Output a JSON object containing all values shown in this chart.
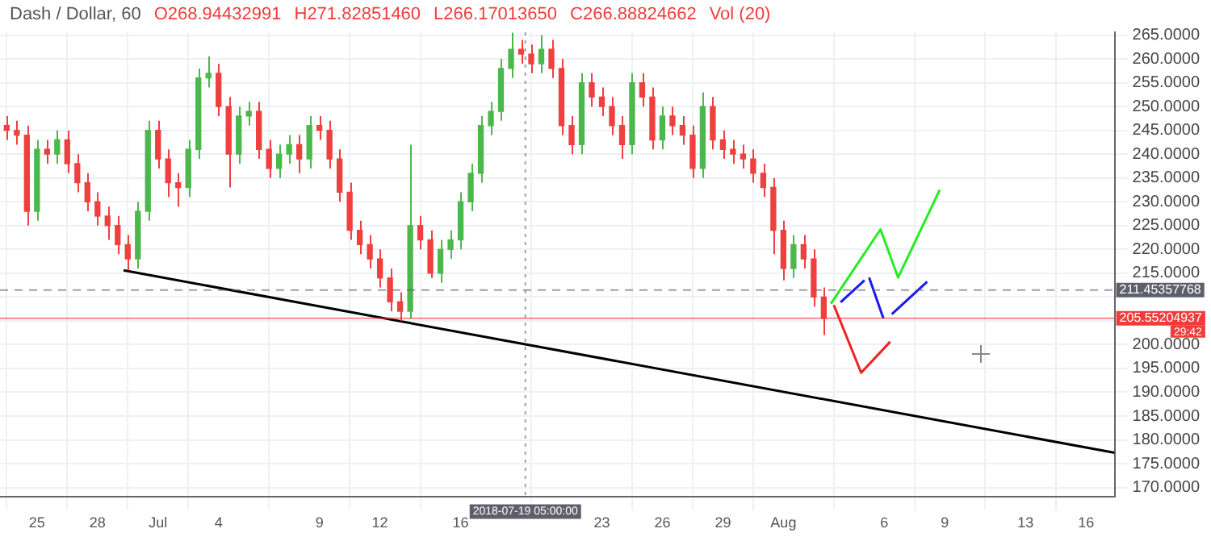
{
  "chart_data": {
    "type": "candlestick",
    "title": "Dash / Dollar, 60",
    "annotations": [
      "O268.94432991",
      "H271.82851460",
      "L266.17013650",
      "C266.88824662",
      "Vol (20)",
      "29:42"
    ],
    "x": [
      "2018-06-23T12:00",
      "2018-06-24T00:00",
      "2018-06-24T12:00",
      "2018-06-25T00:00",
      "2018-06-25T12:00",
      "2018-06-26T00:00",
      "2018-06-26T12:00",
      "2018-06-27T00:00",
      "2018-06-27T12:00",
      "2018-06-28T00:00",
      "2018-06-28T12:00",
      "2018-06-29T00:00",
      "2018-06-29T12:00",
      "2018-06-30T00:00",
      "2018-06-30T12:00",
      "2018-07-01T00:00",
      "2018-07-01T12:00",
      "2018-07-02T00:00",
      "2018-07-02T12:00",
      "2018-07-03T00:00",
      "2018-07-03T12:00",
      "2018-07-04T00:00",
      "2018-07-04T12:00",
      "2018-07-05T00:00",
      "2018-07-05T12:00",
      "2018-07-06T00:00",
      "2018-07-06T12:00",
      "2018-07-07T00:00",
      "2018-07-07T12:00",
      "2018-07-08T00:00",
      "2018-07-08T12:00",
      "2018-07-09T00:00",
      "2018-07-09T12:00",
      "2018-07-10T00:00",
      "2018-07-10T12:00",
      "2018-07-11T00:00",
      "2018-07-11T12:00",
      "2018-07-12T00:00",
      "2018-07-12T12:00",
      "2018-07-13T00:00",
      "2018-07-13T12:00",
      "2018-07-14T00:00",
      "2018-07-14T12:00",
      "2018-07-15T00:00",
      "2018-07-15T12:00",
      "2018-07-16T00:00",
      "2018-07-16T12:00",
      "2018-07-17T00:00",
      "2018-07-17T12:00",
      "2018-07-18T00:00",
      "2018-07-18T12:00",
      "2018-07-19T00:00",
      "2018-07-19T12:00",
      "2018-07-20T00:00",
      "2018-07-20T12:00",
      "2018-07-21T00:00",
      "2018-07-21T12:00",
      "2018-07-22T00:00",
      "2018-07-22T12:00",
      "2018-07-23T00:00",
      "2018-07-23T12:00",
      "2018-07-24T00:00",
      "2018-07-24T12:00",
      "2018-07-25T00:00",
      "2018-07-25T12:00",
      "2018-07-26T00:00",
      "2018-07-26T12:00",
      "2018-07-27T00:00",
      "2018-07-27T12:00",
      "2018-07-28T00:00",
      "2018-07-28T12:00",
      "2018-07-29T00:00",
      "2018-07-29T12:00",
      "2018-07-30T00:00",
      "2018-07-30T12:00",
      "2018-07-31T00:00",
      "2018-07-31T12:00",
      "2018-08-01T00:00",
      "2018-08-01T12:00",
      "2018-08-02T00:00",
      "2018-08-02T12:00",
      "2018-08-03T00:00"
    ],
    "ohlc": [
      [
        246,
        248,
        243,
        245
      ],
      [
        245,
        247,
        242,
        244
      ],
      [
        244,
        246,
        225,
        228
      ],
      [
        228,
        243,
        226,
        241
      ],
      [
        241,
        243,
        238,
        240
      ],
      [
        240,
        245,
        238,
        243
      ],
      [
        243,
        245,
        236,
        238
      ],
      [
        238,
        240,
        232,
        234
      ],
      [
        234,
        236,
        228,
        230
      ],
      [
        230,
        232,
        225,
        227
      ],
      [
        227,
        229,
        222,
        225
      ],
      [
        225,
        227,
        219,
        221
      ],
      [
        221,
        223,
        215.6,
        218
      ],
      [
        218,
        230,
        216,
        228
      ],
      [
        228,
        247,
        226,
        245
      ],
      [
        245,
        247,
        237,
        239
      ],
      [
        239,
        241,
        231,
        234
      ],
      [
        234,
        236,
        229,
        233
      ],
      [
        233,
        243,
        231,
        241
      ],
      [
        241,
        258,
        239,
        256
      ],
      [
        256,
        260.5,
        254,
        257
      ],
      [
        257,
        259,
        248,
        250
      ],
      [
        250,
        252,
        233,
        240
      ],
      [
        240,
        250,
        238,
        248
      ],
      [
        248,
        251,
        246,
        249
      ],
      [
        249,
        251,
        239,
        241
      ],
      [
        241,
        243,
        235,
        237
      ],
      [
        237,
        242,
        235,
        240
      ],
      [
        240,
        244,
        238,
        242
      ],
      [
        242,
        244,
        236,
        239
      ],
      [
        239,
        248,
        237,
        246
      ],
      [
        246,
        248,
        243,
        245
      ],
      [
        245,
        247,
        237,
        239
      ],
      [
        239,
        241,
        230,
        232
      ],
      [
        232,
        234,
        222,
        224
      ],
      [
        224,
        226,
        219,
        221
      ],
      [
        221,
        223,
        216,
        218
      ],
      [
        218,
        220,
        212,
        214
      ],
      [
        214,
        216,
        207,
        209
      ],
      [
        209,
        211,
        205,
        207
      ],
      [
        207,
        242,
        205.5,
        225
      ],
      [
        225,
        227,
        220,
        222
      ],
      [
        222,
        224,
        214,
        215
      ],
      [
        215,
        222,
        213,
        220
      ],
      [
        220,
        224,
        218,
        222
      ],
      [
        222,
        232,
        220,
        230
      ],
      [
        230,
        238,
        228,
        236
      ],
      [
        236,
        248,
        234,
        246
      ],
      [
        246,
        251,
        244,
        249
      ],
      [
        249,
        260,
        247,
        258
      ],
      [
        258,
        265.5,
        256,
        262
      ],
      [
        262,
        264,
        259,
        261
      ],
      [
        261,
        263,
        257,
        259
      ],
      [
        259,
        265,
        257,
        262
      ],
      [
        262,
        264,
        256,
        258
      ],
      [
        258,
        260,
        244,
        246
      ],
      [
        246,
        248,
        240,
        242
      ],
      [
        242,
        257,
        240,
        255
      ],
      [
        255,
        257,
        250,
        252
      ],
      [
        252,
        254,
        248,
        250
      ],
      [
        250,
        252,
        244,
        246
      ],
      [
        246,
        248,
        239,
        242
      ],
      [
        242,
        257,
        240,
        255
      ],
      [
        255,
        257,
        250,
        252
      ],
      [
        252,
        254,
        241,
        243
      ],
      [
        243,
        250,
        241,
        248
      ],
      [
        248,
        250,
        244,
        246
      ],
      [
        246,
        248,
        242,
        244
      ],
      [
        244,
        246,
        235,
        237
      ],
      [
        237,
        253,
        235,
        250
      ],
      [
        250,
        252,
        241,
        243
      ],
      [
        243,
        245,
        239,
        241
      ],
      [
        241,
        243,
        238,
        240
      ],
      [
        240,
        242,
        237,
        239
      ],
      [
        239,
        241,
        234,
        236
      ],
      [
        236,
        238,
        231,
        233
      ],
      [
        233,
        235,
        219,
        224
      ],
      [
        224,
        226,
        213.5,
        216
      ],
      [
        216,
        223,
        214,
        221
      ],
      [
        221,
        223,
        216,
        218
      ],
      [
        218,
        220,
        208,
        210
      ],
      [
        210,
        212,
        202,
        205.55
      ]
    ],
    "colors": [
      "#ef3f3f",
      "#ef3f3f",
      "#ef3f3f",
      "#4cb84c",
      "#ef3f3f",
      "#4cb84c",
      "#ef3f3f",
      "#ef3f3f",
      "#ef3f3f",
      "#ef3f3f",
      "#ef3f3f",
      "#ef3f3f",
      "#ef3f3f",
      "#4cb84c",
      "#4cb84c",
      "#ef3f3f",
      "#ef3f3f",
      "#ef3f3f",
      "#4cb84c",
      "#4cb84c",
      "#4cb84c",
      "#ef3f3f",
      "#ef3f3f",
      "#4cb84c",
      "#4cb84c",
      "#ef3f3f",
      "#ef3f3f",
      "#4cb84c",
      "#4cb84c",
      "#ef3f3f",
      "#4cb84c",
      "#ef3f3f",
      "#ef3f3f",
      "#ef3f3f",
      "#ef3f3f",
      "#ef3f3f",
      "#ef3f3f",
      "#ef3f3f",
      "#ef3f3f",
      "#ef3f3f",
      "#4cb84c",
      "#ef3f3f",
      "#ef3f3f",
      "#4cb84c",
      "#4cb84c",
      "#4cb84c",
      "#4cb84c",
      "#4cb84c",
      "#4cb84c",
      "#4cb84c",
      "#4cb84c",
      "#ef3f3f",
      "#ef3f3f",
      "#4cb84c",
      "#ef3f3f",
      "#ef3f3f",
      "#ef3f3f",
      "#4cb84c",
      "#ef3f3f",
      "#ef3f3f",
      "#ef3f3f",
      "#ef3f3f",
      "#4cb84c",
      "#ef3f3f",
      "#ef3f3f",
      "#4cb84c",
      "#ef3f3f",
      "#ef3f3f",
      "#ef3f3f",
      "#4cb84c",
      "#ef3f3f",
      "#ef3f3f",
      "#ef3f3f",
      "#ef3f3f",
      "#ef3f3f",
      "#ef3f3f",
      "#ef3f3f",
      "#ef3f3f",
      "#4cb84c",
      "#ef3f3f",
      "#ef3f3f",
      "#ef3f3f"
    ],
    "series": [
      {
        "type": "line",
        "color": "#000000",
        "x": [
          "2018-06-29T07:00",
          "2018-08-17T10:00"
        ],
        "values": [
          215.6,
          177.3
        ]
      },
      {
        "type": "line",
        "color": "#22ee22",
        "x": [
          "2018-08-03T08:30",
          "2018-08-05T19:30",
          "2018-08-06T16:30",
          "2018-08-08T18:00"
        ],
        "values": [
          208.6,
          224.2,
          214.1,
          232.5
        ]
      },
      {
        "type": "line",
        "color": "#1a1aee",
        "x": [
          "2018-08-03T20:00",
          "2018-08-05T00:30"
        ],
        "values": [
          208.9,
          213.5
        ]
      },
      {
        "type": "line",
        "color": "#1a1aee",
        "x": [
          "2018-08-05T06:00",
          "2018-08-05T23:00"
        ],
        "values": [
          214.1,
          205.5
        ]
      },
      {
        "type": "line",
        "color": "#1a1aee",
        "x": [
          "2018-08-06T09:00",
          "2018-08-08T03:00"
        ],
        "values": [
          206.4,
          213.2
        ]
      },
      {
        "type": "line",
        "color": "#ee2222",
        "x": [
          "2018-08-03T12:00",
          "2018-08-04T20:30",
          "2018-08-06T07:00"
        ],
        "values": [
          208.3,
          194.1,
          200.6
        ]
      }
    ],
    "marker": "none",
    "ref_lines": [
      {
        "axis": "y",
        "value": 211.45357768,
        "label": "211.45357768",
        "color": "#5d606b",
        "line_style": "dashed"
      },
      {
        "axis": "y",
        "value": 205.55204937,
        "label": "205.55204937",
        "color": "#f23b3b",
        "line_style": "solid"
      },
      {
        "axis": "x",
        "value": "2018-07-19T05:00",
        "label": "2018-07-19 05:00:00",
        "color": "#5d606b",
        "line_style": "dotted"
      }
    ],
    "xlim": [
      "2018-06-23T04:00",
      "2018-08-17T10:00"
    ],
    "xticks": [
      {
        "value": "2018-06-25",
        "label": "25"
      },
      {
        "value": "2018-06-28",
        "label": "28"
      },
      {
        "value": "2018-07-01",
        "label": "Jul"
      },
      {
        "value": "2018-07-04",
        "label": "4"
      },
      {
        "value": "2018-07-09",
        "label": "9"
      },
      {
        "value": "2018-07-12",
        "label": "12"
      },
      {
        "value": "2018-07-16",
        "label": "16"
      },
      {
        "value": "2018-07-23",
        "label": "23"
      },
      {
        "value": "2018-07-26",
        "label": "26"
      },
      {
        "value": "2018-07-29",
        "label": "29"
      },
      {
        "value": "2018-08-01",
        "label": "Aug"
      },
      {
        "value": "2018-08-06",
        "label": "6"
      },
      {
        "value": "2018-08-09",
        "label": "9"
      },
      {
        "value": "2018-08-13",
        "label": "13"
      },
      {
        "value": "2018-08-16",
        "label": "16"
      }
    ],
    "ylim": [
      168,
      265.6
    ],
    "yticks": [
      {
        "value": 170,
        "label": "170.0000"
      },
      {
        "value": 175,
        "label": "175.0000"
      },
      {
        "value": 180,
        "label": "180.0000"
      },
      {
        "value": 185,
        "label": "185.0000"
      },
      {
        "value": 190,
        "label": "190.0000"
      },
      {
        "value": 195,
        "label": "195.0000"
      },
      {
        "value": 200,
        "label": "200.0000"
      },
      {
        "value": 205,
        "label": null
      },
      {
        "value": 210,
        "label": null
      },
      {
        "value": 215,
        "label": "215.0000"
      },
      {
        "value": 220,
        "label": "220.0000"
      },
      {
        "value": 225,
        "label": "225.0000"
      },
      {
        "value": 230,
        "label": "230.0000"
      },
      {
        "value": 235,
        "label": "235.0000"
      },
      {
        "value": 240,
        "label": "240.0000"
      },
      {
        "value": 245,
        "label": "245.0000"
      },
      {
        "value": 250,
        "label": "250.0000"
      },
      {
        "value": 255,
        "label": "255.0000"
      },
      {
        "value": 260,
        "label": "260.0000"
      },
      {
        "value": 265,
        "label": "265.0000"
      }
    ],
    "grid": true,
    "legend": false
  }
}
